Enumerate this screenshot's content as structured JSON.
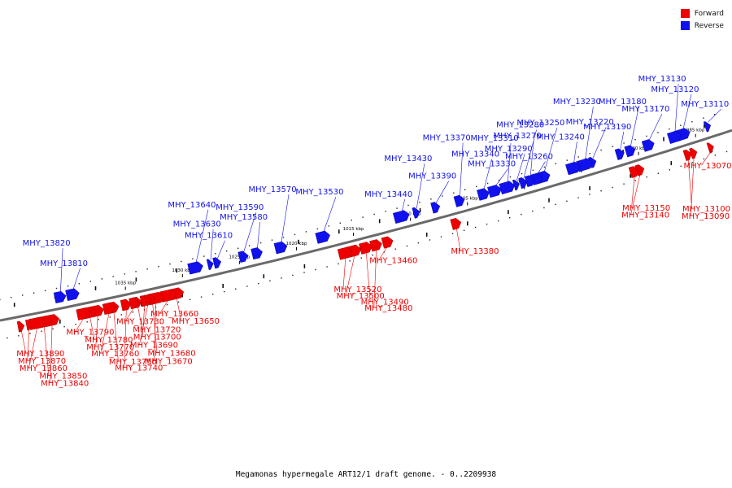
{
  "legend": [
    {
      "label": "Forward",
      "color": "#ee0000"
    },
    {
      "label": "Reverse",
      "color": "#1111ee"
    }
  ],
  "caption": "Megamonas hypermegale ART12/1 draft genome. - 0..2209938",
  "colors": {
    "forward": "#ee0000",
    "reverse": "#1111ee",
    "backbone": "#6a6a6a"
  },
  "ticks": [
    {
      "label": "985 kbp",
      "kbp": 985
    },
    {
      "label": "990 kbp",
      "kbp": 990
    },
    {
      "label": "995 kbp",
      "kbp": 995
    },
    {
      "label": "1000 kbp",
      "kbp": 1000
    },
    {
      "label": "1005 kbp",
      "kbp": 1005
    },
    {
      "label": "1010 kbp",
      "kbp": 1010
    },
    {
      "label": "1015 kbp",
      "kbp": 1015
    },
    {
      "label": "1020 kbp",
      "kbp": 1020
    },
    {
      "label": "1025 kbp",
      "kbp": 1025
    },
    {
      "label": "1030 kbp",
      "kbp": 1030
    },
    {
      "label": "1035 kbp",
      "kbp": 1035
    }
  ],
  "genes_reverse": [
    {
      "name": "MHY_13110",
      "kbp": 983.6
    },
    {
      "name": "MHY_13120",
      "kbp": 985.8
    },
    {
      "name": "MHY_13130",
      "kbp": 986.5
    },
    {
      "name": "MHY_13170",
      "kbp": 988.8
    },
    {
      "name": "MHY_13180",
      "kbp": 990.4
    },
    {
      "name": "MHY_13190",
      "kbp": 991.3
    },
    {
      "name": "MHY_13220",
      "kbp": 993.7
    },
    {
      "name": "MHY_13230",
      "kbp": 994.4
    },
    {
      "name": "MHY_13240",
      "kbp": 995.4
    },
    {
      "name": "MHY_13250",
      "kbp": 998.0
    },
    {
      "name": "MHY_13260",
      "kbp": 998.6
    },
    {
      "name": "MHY_13270",
      "kbp": 999.2
    },
    {
      "name": "MHY_13280",
      "kbp": 999.8
    },
    {
      "name": "MHY_13290",
      "kbp": 1000.4
    },
    {
      "name": "MHY_13310",
      "kbp": 1001.2
    },
    {
      "name": "MHY_13330",
      "kbp": 1002.3
    },
    {
      "name": "MHY_13340",
      "kbp": 1003.3
    },
    {
      "name": "MHY_13370",
      "kbp": 1005.4
    },
    {
      "name": "MHY_13390",
      "kbp": 1007.5
    },
    {
      "name": "MHY_13430",
      "kbp": 1009.2
    },
    {
      "name": "MHY_13440",
      "kbp": 1010.5
    },
    {
      "name": "MHY_13530",
      "kbp": 1017.4
    },
    {
      "name": "MHY_13570",
      "kbp": 1021.1
    },
    {
      "name": "MHY_13580",
      "kbp": 1023.2
    },
    {
      "name": "MHY_13590",
      "kbp": 1024.4
    },
    {
      "name": "MHY_13610",
      "kbp": 1026.7
    },
    {
      "name": "MHY_13630",
      "kbp": 1027.3
    },
    {
      "name": "MHY_13640",
      "kbp": 1028.6
    },
    {
      "name": "MHY_13810",
      "kbp": 1039.4
    },
    {
      "name": "MHY_13820",
      "kbp": 1040.5
    }
  ],
  "genes_forward": [
    {
      "name": "MHY_13070",
      "kbp": 983.9
    },
    {
      "name": "MHY_13090",
      "kbp": 985.4
    },
    {
      "name": "MHY_13100",
      "kbp": 985.9
    },
    {
      "name": "MHY_13140",
      "kbp": 990.1
    },
    {
      "name": "MHY_13150",
      "kbp": 990.6
    },
    {
      "name": "MHY_13380",
      "kbp": 1006.2
    },
    {
      "name": "MHY_13460",
      "kbp": 1012.2
    },
    {
      "name": "MHY_13480",
      "kbp": 1013.2
    },
    {
      "name": "MHY_13490",
      "kbp": 1014.1
    },
    {
      "name": "MHY_13500",
      "kbp": 1015.1
    },
    {
      "name": "MHY_13520",
      "kbp": 1015.9
    },
    {
      "name": "MHY_13650",
      "kbp": 1030.7
    },
    {
      "name": "MHY_13660",
      "kbp": 1031.4
    },
    {
      "name": "MHY_13670",
      "kbp": 1032.5
    },
    {
      "name": "MHY_13680",
      "kbp": 1032.8
    },
    {
      "name": "MHY_13690",
      "kbp": 1033.2
    },
    {
      "name": "MHY_13700",
      "kbp": 1033.5
    },
    {
      "name": "MHY_13720",
      "kbp": 1034.1
    },
    {
      "name": "MHY_13730",
      "kbp": 1034.4
    },
    {
      "name": "MHY_13740",
      "kbp": 1035.1
    },
    {
      "name": "MHY_13750",
      "kbp": 1036.2
    },
    {
      "name": "MHY_13760",
      "kbp": 1036.6
    },
    {
      "name": "MHY_13770",
      "kbp": 1037.6
    },
    {
      "name": "MHY_13780",
      "kbp": 1038.3
    },
    {
      "name": "MHY_13790",
      "kbp": 1038.8
    },
    {
      "name": "MHY_13840",
      "kbp": 1041.6
    },
    {
      "name": "MHY_13850",
      "kbp": 1042.3
    },
    {
      "name": "MHY_13860",
      "kbp": 1042.9
    },
    {
      "name": "MHY_13870",
      "kbp": 1043.6
    },
    {
      "name": "MHY_13890",
      "kbp": 1044.3
    }
  ]
}
